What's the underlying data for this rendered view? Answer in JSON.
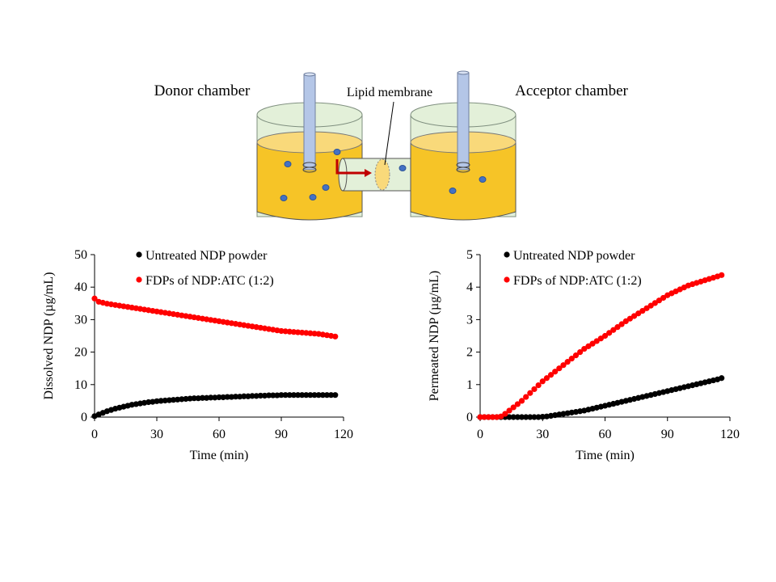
{
  "diagram": {
    "donor": "Donor chamber",
    "membrane": "Lipid membrane",
    "acceptor": "Acceptor chamber"
  },
  "chart_data": [
    {
      "type": "scatter",
      "ylabel": "Dissolved NDP (µg/mL)",
      "xlabel": "Time (min)",
      "xlim": [
        0,
        120
      ],
      "xticks": [
        0,
        30,
        60,
        90,
        120
      ],
      "ylim": [
        0,
        50
      ],
      "yticks": [
        0,
        10,
        20,
        30,
        40,
        50
      ],
      "x": [
        0,
        2,
        4,
        6,
        8,
        10,
        12,
        14,
        16,
        18,
        20,
        22,
        24,
        26,
        28,
        30,
        32,
        34,
        36,
        38,
        40,
        42,
        44,
        46,
        48,
        50,
        52,
        54,
        56,
        58,
        60,
        62,
        64,
        66,
        68,
        70,
        72,
        74,
        76,
        78,
        80,
        82,
        84,
        86,
        88,
        90,
        92,
        94,
        96,
        98,
        100,
        102,
        104,
        106,
        108,
        110,
        112,
        114,
        116
      ],
      "series": [
        {
          "name": "Untreated NDP powder",
          "color": "#000000",
          "values": [
            0.3,
            0.8,
            1.3,
            1.8,
            2.2,
            2.6,
            2.9,
            3.2,
            3.5,
            3.8,
            4.0,
            4.2,
            4.4,
            4.6,
            4.7,
            4.9,
            5.0,
            5.1,
            5.2,
            5.3,
            5.4,
            5.5,
            5.6,
            5.7,
            5.8,
            5.8,
            5.9,
            5.9,
            6.0,
            6.0,
            6.1,
            6.1,
            6.2,
            6.2,
            6.3,
            6.3,
            6.4,
            6.4,
            6.5,
            6.5,
            6.6,
            6.6,
            6.7,
            6.7,
            6.7,
            6.8,
            6.8,
            6.8,
            6.8,
            6.8,
            6.8,
            6.8,
            6.8,
            6.8,
            6.8,
            6.8,
            6.8,
            6.8,
            6.8
          ]
        },
        {
          "name": "FDPs of NDP:ATC (1:2)",
          "color": "#ff0000",
          "values": [
            36.5,
            35.5,
            35.2,
            34.9,
            34.7,
            34.5,
            34.3,
            34.1,
            33.9,
            33.7,
            33.5,
            33.3,
            33.1,
            32.9,
            32.7,
            32.5,
            32.3,
            32.1,
            31.9,
            31.7,
            31.5,
            31.3,
            31.1,
            30.9,
            30.7,
            30.5,
            30.3,
            30.1,
            29.9,
            29.7,
            29.5,
            29.3,
            29.1,
            28.9,
            28.7,
            28.5,
            28.3,
            28.1,
            27.9,
            27.7,
            27.5,
            27.3,
            27.1,
            26.9,
            26.7,
            26.5,
            26.4,
            26.3,
            26.2,
            26.1,
            26.0,
            25.9,
            25.8,
            25.7,
            25.6,
            25.4,
            25.2,
            25.0,
            24.8
          ]
        }
      ]
    },
    {
      "type": "scatter",
      "ylabel": "Permeated NDP (µg/mL)",
      "xlabel": "Time (min)",
      "xlim": [
        0,
        120
      ],
      "xticks": [
        0,
        30,
        60,
        90,
        120
      ],
      "ylim": [
        0,
        5
      ],
      "yticks": [
        0,
        1,
        2,
        3,
        4,
        5
      ],
      "x": [
        0,
        2,
        4,
        6,
        8,
        10,
        12,
        14,
        16,
        18,
        20,
        22,
        24,
        26,
        28,
        30,
        32,
        34,
        36,
        38,
        40,
        42,
        44,
        46,
        48,
        50,
        52,
        54,
        56,
        58,
        60,
        62,
        64,
        66,
        68,
        70,
        72,
        74,
        76,
        78,
        80,
        82,
        84,
        86,
        88,
        90,
        92,
        94,
        96,
        98,
        100,
        102,
        104,
        106,
        108,
        110,
        112,
        114,
        116
      ],
      "series": [
        {
          "name": "Untreated NDP powder",
          "color": "#000000",
          "values": [
            0,
            0,
            0,
            0,
            0,
            0,
            0,
            0,
            0,
            0,
            0,
            0,
            0,
            0,
            0,
            0.01,
            0.02,
            0.04,
            0.06,
            0.08,
            0.1,
            0.12,
            0.14,
            0.16,
            0.18,
            0.2,
            0.23,
            0.26,
            0.29,
            0.32,
            0.35,
            0.38,
            0.41,
            0.44,
            0.47,
            0.5,
            0.53,
            0.56,
            0.59,
            0.62,
            0.65,
            0.68,
            0.71,
            0.74,
            0.77,
            0.8,
            0.83,
            0.86,
            0.89,
            0.92,
            0.95,
            0.98,
            1.01,
            1.04,
            1.07,
            1.1,
            1.13,
            1.16,
            1.2
          ]
        },
        {
          "name": "FDPs of NDP:ATC (1:2)",
          "color": "#ff0000",
          "values": [
            0,
            0,
            0,
            0,
            0,
            0.02,
            0.1,
            0.2,
            0.3,
            0.4,
            0.5,
            0.62,
            0.74,
            0.86,
            0.98,
            1.1,
            1.2,
            1.3,
            1.4,
            1.5,
            1.6,
            1.7,
            1.8,
            1.9,
            2.0,
            2.1,
            2.18,
            2.26,
            2.34,
            2.42,
            2.5,
            2.59,
            2.68,
            2.77,
            2.86,
            2.95,
            3.03,
            3.11,
            3.19,
            3.27,
            3.35,
            3.43,
            3.51,
            3.59,
            3.67,
            3.75,
            3.81,
            3.87,
            3.93,
            3.99,
            4.05,
            4.09,
            4.13,
            4.17,
            4.21,
            4.25,
            4.29,
            4.33,
            4.37
          ]
        }
      ]
    }
  ]
}
